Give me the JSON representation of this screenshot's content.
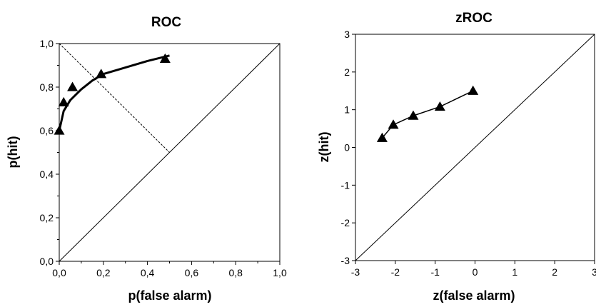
{
  "chart_data": [
    {
      "type": "line",
      "title": "ROC",
      "xlabel": "p(false alarm)",
      "ylabel": "p(hit)",
      "xlim": [
        0,
        1
      ],
      "ylim": [
        0,
        1
      ],
      "x_ticks": [
        "0,0",
        "0,2",
        "0,4",
        "0,6",
        "0,8",
        "1,0"
      ],
      "y_ticks": [
        "0,0",
        "0,2",
        "0,4",
        "0,6",
        "0,8",
        "1,0"
      ],
      "grid": false,
      "legend": "none",
      "series": [
        {
          "marker": "triangle",
          "points": [
            {
              "x": 0.0,
              "y": 0.6
            },
            {
              "x": 0.02,
              "y": 0.73
            },
            {
              "x": 0.06,
              "y": 0.8
            },
            {
              "x": 0.19,
              "y": 0.86
            },
            {
              "x": 0.48,
              "y": 0.93
            }
          ]
        }
      ],
      "fitted_curve": [
        {
          "x": 0.0,
          "y": 0.6
        },
        {
          "x": 0.02,
          "y": 0.69
        },
        {
          "x": 0.05,
          "y": 0.74
        },
        {
          "x": 0.1,
          "y": 0.79
        },
        {
          "x": 0.15,
          "y": 0.83
        },
        {
          "x": 0.2,
          "y": 0.86
        },
        {
          "x": 0.3,
          "y": 0.89
        },
        {
          "x": 0.4,
          "y": 0.92
        },
        {
          "x": 0.5,
          "y": 0.945
        }
      ],
      "reference_lines": [
        {
          "style": "solid",
          "from": {
            "x": 0,
            "y": 0
          },
          "to": {
            "x": 1,
            "y": 1
          }
        },
        {
          "style": "dashed",
          "from": {
            "x": 0,
            "y": 1
          },
          "to": {
            "x": 0.5,
            "y": 0.5
          }
        }
      ]
    },
    {
      "type": "line",
      "title": "zROC",
      "xlabel": "z(false alarm)",
      "ylabel": "z(hit)",
      "xlim": [
        -3,
        3
      ],
      "ylim": [
        -3,
        3
      ],
      "x_ticks": [
        "-3",
        "-2",
        "-1",
        "0",
        "1",
        "2",
        "3"
      ],
      "y_ticks": [
        "-3",
        "-2",
        "-1",
        "0",
        "1",
        "2",
        "3"
      ],
      "grid": false,
      "legend": "none",
      "series": [
        {
          "marker": "triangle",
          "points": [
            {
              "x": -2.33,
              "y": 0.25
            },
            {
              "x": -2.05,
              "y": 0.6
            },
            {
              "x": -1.55,
              "y": 0.84
            },
            {
              "x": -0.88,
              "y": 1.08
            },
            {
              "x": -0.05,
              "y": 1.5
            }
          ]
        }
      ],
      "reference_lines": [
        {
          "style": "solid",
          "from": {
            "x": -3,
            "y": -3
          },
          "to": {
            "x": 3,
            "y": 3
          }
        }
      ]
    }
  ]
}
